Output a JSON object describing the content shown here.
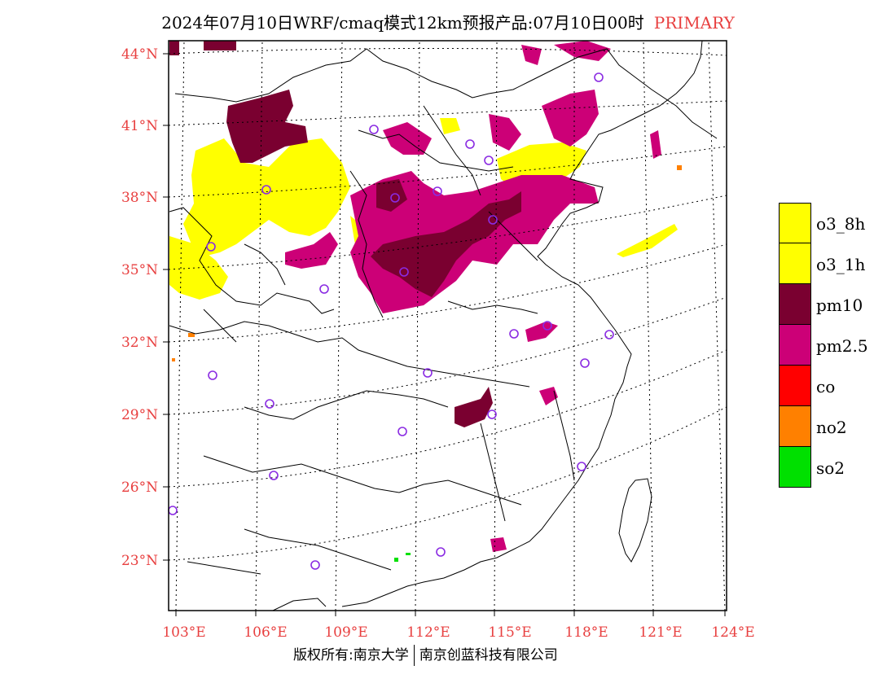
{
  "title": {
    "main": "2024年07月10日WRF/cmaq模式12km预报产品:07月10日00时",
    "tag": "PRIMARY"
  },
  "axes": {
    "lat_labels": [
      "44°N",
      "41°N",
      "38°N",
      "35°N",
      "32°N",
      "29°N",
      "26°N",
      "23°N"
    ],
    "lon_labels": [
      "103°E",
      "106°E",
      "109°E",
      "112°E",
      "115°E",
      "118°E",
      "121°E",
      "124°E"
    ]
  },
  "legend": {
    "items": [
      {
        "label": "o3_8h",
        "color": "#ffff00"
      },
      {
        "label": "o3_1h",
        "color": "#ffff00"
      },
      {
        "label": "pm10",
        "color": "#7a0030"
      },
      {
        "label": "pm2.5",
        "color": "#cc0077"
      },
      {
        "label": "co",
        "color": "#ff0000"
      },
      {
        "label": "no2",
        "color": "#ff8000"
      },
      {
        "label": "so2",
        "color": "#00e000"
      }
    ]
  },
  "colors": {
    "label_red": "#e84040",
    "station_marker": "#8a2be2"
  },
  "footer": {
    "left": "版权所有:南京大学",
    "right": "南京创蓝科技有限公司"
  }
}
